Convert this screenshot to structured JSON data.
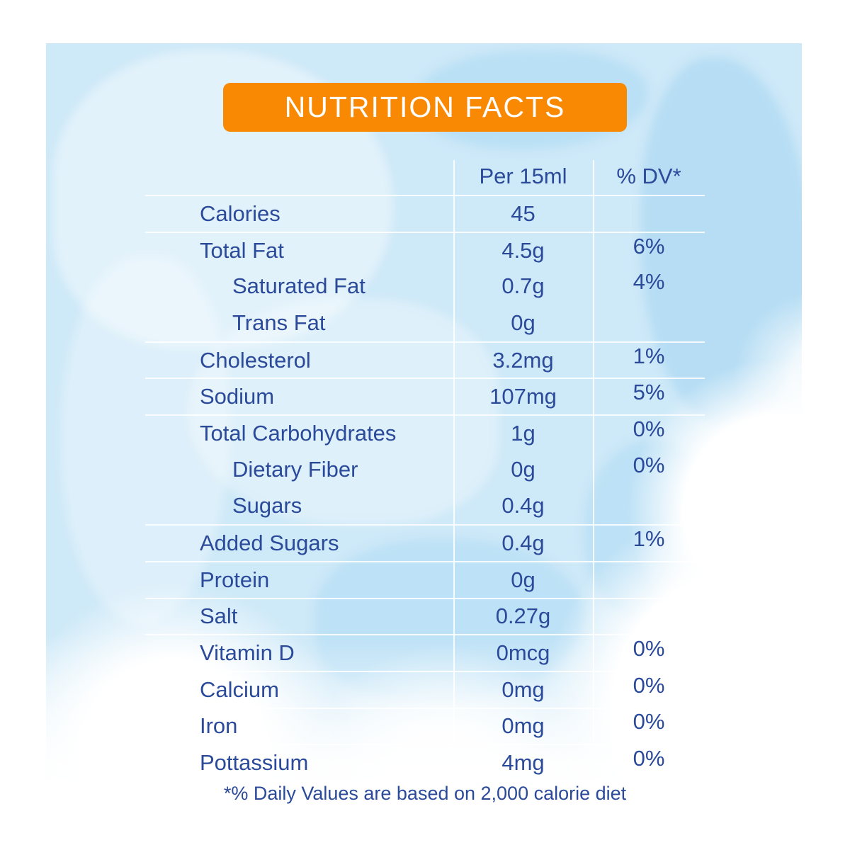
{
  "title": "NUTRITION FACTS",
  "columns": {
    "amount": "Per 15ml",
    "dv": "% DV*"
  },
  "rows": [
    {
      "label": "Calories",
      "amount": "45",
      "dv": "",
      "indent": false,
      "sep": true
    },
    {
      "label": "Total Fat",
      "amount": "4.5g",
      "dv": "6%",
      "indent": false,
      "sep": true
    },
    {
      "label": "Saturated Fat",
      "amount": "0.7g",
      "dv": "4%",
      "indent": true,
      "sep": false
    },
    {
      "label": "Trans Fat",
      "amount": "0g",
      "dv": "",
      "indent": true,
      "sep": false
    },
    {
      "label": "Cholesterol",
      "amount": "3.2mg",
      "dv": "1%",
      "indent": false,
      "sep": true
    },
    {
      "label": "Sodium",
      "amount": "107mg",
      "dv": "5%",
      "indent": false,
      "sep": true
    },
    {
      "label": "Total Carbohydrates",
      "amount": "1g",
      "dv": "0%",
      "indent": false,
      "sep": true
    },
    {
      "label": "Dietary Fiber",
      "amount": "0g",
      "dv": "0%",
      "indent": true,
      "sep": false
    },
    {
      "label": "Sugars",
      "amount": "0.4g",
      "dv": "",
      "indent": true,
      "sep": false
    },
    {
      "label": "Added Sugars",
      "amount": "0.4g",
      "dv": "1%",
      "indent": false,
      "sep": true
    },
    {
      "label": "Protein",
      "amount": "0g",
      "dv": "",
      "indent": false,
      "sep": true
    },
    {
      "label": "Salt",
      "amount": "0.27g",
      "dv": "",
      "indent": false,
      "sep": true
    },
    {
      "label": "Vitamin D",
      "amount": "0mcg",
      "dv": "0%",
      "indent": false,
      "sep": true
    },
    {
      "label": "Calcium",
      "amount": "0mg",
      "dv": "0%",
      "indent": false,
      "sep": true
    },
    {
      "label": "Iron",
      "amount": "0mg",
      "dv": "0%",
      "indent": false,
      "sep": true
    },
    {
      "label": "Pottassium",
      "amount": "4mg",
      "dv": "0%",
      "indent": false,
      "sep": true
    }
  ],
  "footnote": "*% Daily Values are based on 2,000 calorie diet",
  "colors": {
    "accent_orange": "#F98803",
    "text_blue": "#2B4A9A",
    "background_blue": "#CEE9F8",
    "line_white": "#FFFFFF"
  }
}
